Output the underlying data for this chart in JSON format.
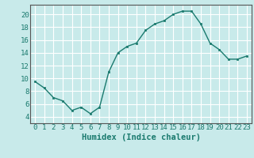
{
  "x": [
    0,
    1,
    2,
    3,
    4,
    5,
    6,
    7,
    8,
    9,
    10,
    11,
    12,
    13,
    14,
    15,
    16,
    17,
    18,
    19,
    20,
    21,
    22,
    23
  ],
  "y": [
    9.5,
    8.5,
    7.0,
    6.5,
    5.0,
    5.5,
    4.5,
    5.5,
    11.0,
    14.0,
    15.0,
    15.5,
    17.5,
    18.5,
    19.0,
    20.0,
    20.5,
    20.5,
    18.5,
    15.5,
    14.5,
    13.0,
    13.0,
    13.5
  ],
  "xlabel": "Humidex (Indice chaleur)",
  "ylim": [
    3,
    21.5
  ],
  "xlim": [
    -0.5,
    23.5
  ],
  "yticks": [
    4,
    6,
    8,
    10,
    12,
    14,
    16,
    18,
    20
  ],
  "xticks": [
    0,
    1,
    2,
    3,
    4,
    5,
    6,
    7,
    8,
    9,
    10,
    11,
    12,
    13,
    14,
    15,
    16,
    17,
    18,
    19,
    20,
    21,
    22,
    23
  ],
  "line_color": "#1a7a6e",
  "marker_color": "#1a7a6e",
  "bg_color": "#c8eaea",
  "grid_color": "#ffffff",
  "axis_color": "#555555",
  "xlabel_fontsize": 7.5,
  "tick_fontsize": 6.5
}
